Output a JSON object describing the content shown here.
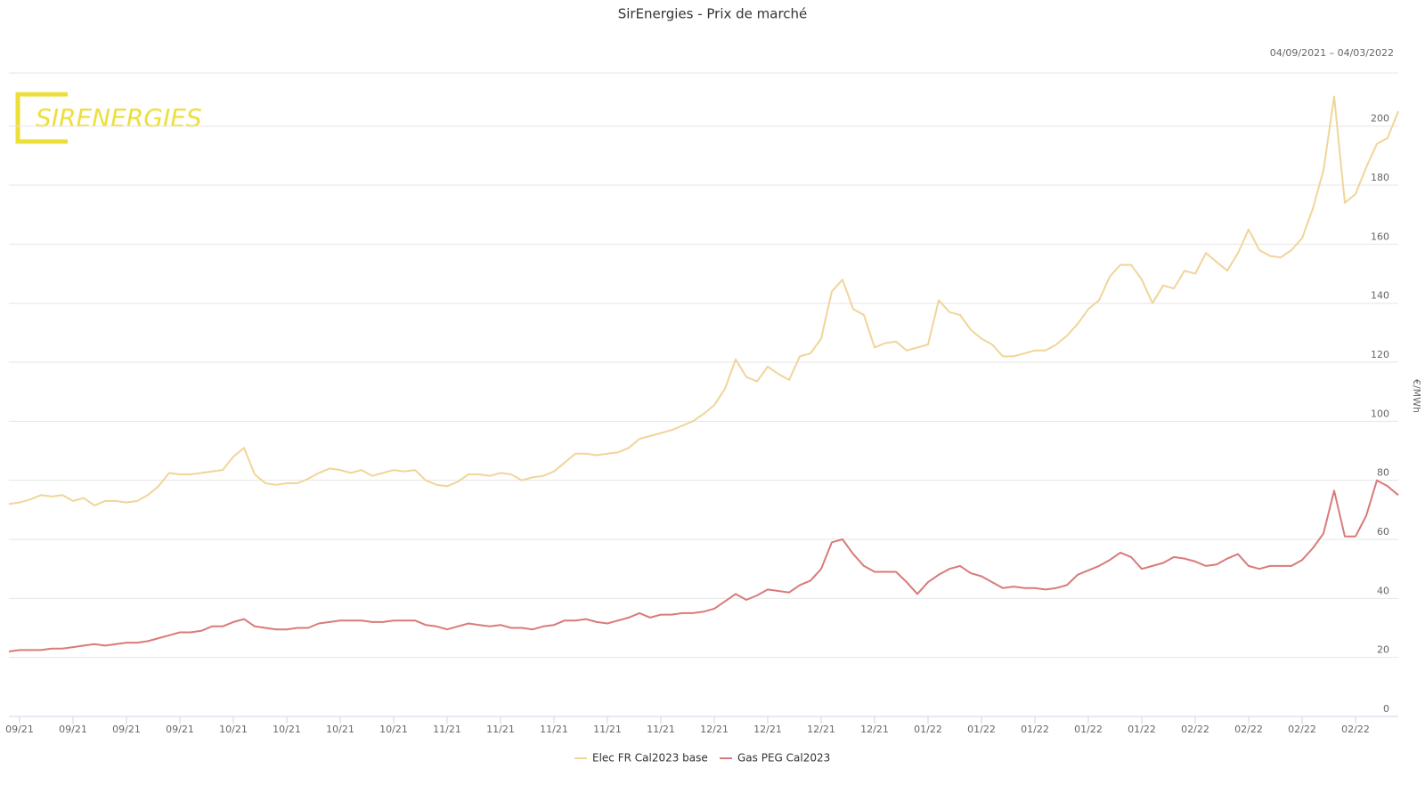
{
  "chart_data": {
    "type": "line",
    "title": "SirEnergies - Prix de marché",
    "date_range": "04/09/2021  –  04/03/2022",
    "logo": "SIRENERGIES",
    "y_label": "€/MWh",
    "categories": [
      null,
      "09/21",
      null,
      null,
      null,
      null,
      "09/21",
      null,
      null,
      null,
      null,
      "09/21",
      null,
      null,
      null,
      null,
      "09/21",
      null,
      null,
      null,
      null,
      "10/21",
      null,
      null,
      null,
      null,
      "10/21",
      null,
      null,
      null,
      null,
      "10/21",
      null,
      null,
      null,
      null,
      "10/21",
      null,
      null,
      null,
      null,
      "11/21",
      null,
      null,
      null,
      null,
      "11/21",
      null,
      null,
      null,
      null,
      "11/21",
      null,
      null,
      null,
      null,
      "11/21",
      null,
      null,
      null,
      null,
      "11/21",
      null,
      null,
      null,
      null,
      "12/21",
      null,
      null,
      null,
      null,
      "12/21",
      null,
      null,
      null,
      null,
      "12/21",
      null,
      null,
      null,
      null,
      "12/21",
      null,
      null,
      null,
      null,
      "01/22",
      null,
      null,
      null,
      null,
      "01/22",
      null,
      null,
      null,
      null,
      "01/22",
      null,
      null,
      null,
      null,
      "01/22",
      null,
      null,
      null,
      null,
      "01/22",
      null,
      null,
      null,
      null,
      "02/22",
      null,
      null,
      null,
      null,
      "02/22",
      null,
      null,
      null,
      null,
      "02/22",
      null,
      null,
      null,
      null,
      "02/22",
      null,
      null,
      null,
      null
    ],
    "series": [
      {
        "name": "Elec FR Cal2023 base",
        "color": "#f0d59a",
        "values": [
          72,
          72.5,
          73.5,
          75,
          74.5,
          75,
          73,
          74,
          71.5,
          73,
          73,
          72.5,
          73,
          75,
          78,
          82.5,
          82,
          82,
          82.5,
          83,
          83.5,
          88,
          91,
          82,
          79,
          78.5,
          79,
          79,
          80.5,
          82.5,
          84,
          83.5,
          82.5,
          83.5,
          81.5,
          82.5,
          83.5,
          83,
          83.5,
          80,
          78.5,
          78,
          79.5,
          82,
          82,
          81.5,
          82.5,
          82,
          80,
          81,
          81.5,
          83,
          86,
          89,
          89,
          88.5,
          89,
          89.5,
          91,
          94,
          95,
          96,
          97,
          98.5,
          100,
          102.5,
          105.5,
          111,
          121,
          115,
          113.5,
          118.5,
          116,
          114,
          122,
          123,
          128,
          144,
          148,
          138,
          136,
          125,
          126.5,
          127,
          124,
          125,
          126,
          141,
          137,
          136,
          131,
          128,
          126,
          122,
          122,
          123,
          124,
          124,
          126,
          129,
          133,
          138,
          141,
          149,
          153,
          153,
          148,
          140,
          146,
          145,
          151,
          150,
          157,
          154,
          151,
          157,
          165,
          158,
          156,
          155.5,
          158,
          162,
          172,
          185,
          210,
          174,
          177,
          186,
          194,
          196,
          205
        ]
      },
      {
        "name": "Gas PEG Cal2023",
        "color": "#d97a7a",
        "values": [
          22,
          22.5,
          22.5,
          22.5,
          23,
          23,
          23.5,
          24,
          24.5,
          24,
          24.5,
          25,
          25,
          25.5,
          26.5,
          27.5,
          28.5,
          28.5,
          29,
          30.5,
          30.5,
          32,
          33,
          30.5,
          30,
          29.5,
          29.5,
          30,
          30,
          31.5,
          32,
          32.5,
          32.5,
          32.5,
          32,
          32,
          32.5,
          32.5,
          32.5,
          31,
          30.5,
          29.5,
          30.5,
          31.5,
          31,
          30.5,
          31,
          30,
          30,
          29.5,
          30.5,
          31,
          32.5,
          32.5,
          33,
          32,
          31.5,
          32.5,
          33.5,
          35,
          33.5,
          34.5,
          34.5,
          35,
          35,
          35.5,
          36.5,
          39,
          41.5,
          39.5,
          41,
          43,
          42.5,
          42,
          44.5,
          46,
          50,
          59,
          60,
          55,
          51,
          49,
          49,
          49,
          45.5,
          41.5,
          45.5,
          48,
          50,
          51,
          48.5,
          47.5,
          45.5,
          43.5,
          44,
          43.5,
          43.5,
          43,
          43.5,
          44.5,
          48,
          49.5,
          51,
          53,
          55.5,
          54,
          50,
          51,
          52,
          54,
          53.5,
          52.5,
          51,
          51.5,
          53.5,
          55,
          51,
          50,
          51,
          51,
          51,
          53,
          57,
          62,
          76.5,
          61,
          61,
          68,
          80,
          78,
          75
        ]
      }
    ],
    "ylim": [
      0,
      218
    ],
    "yticks": [
      0,
      20,
      40,
      60,
      80,
      100,
      120,
      140,
      160,
      180,
      200
    ],
    "grid": true
  }
}
